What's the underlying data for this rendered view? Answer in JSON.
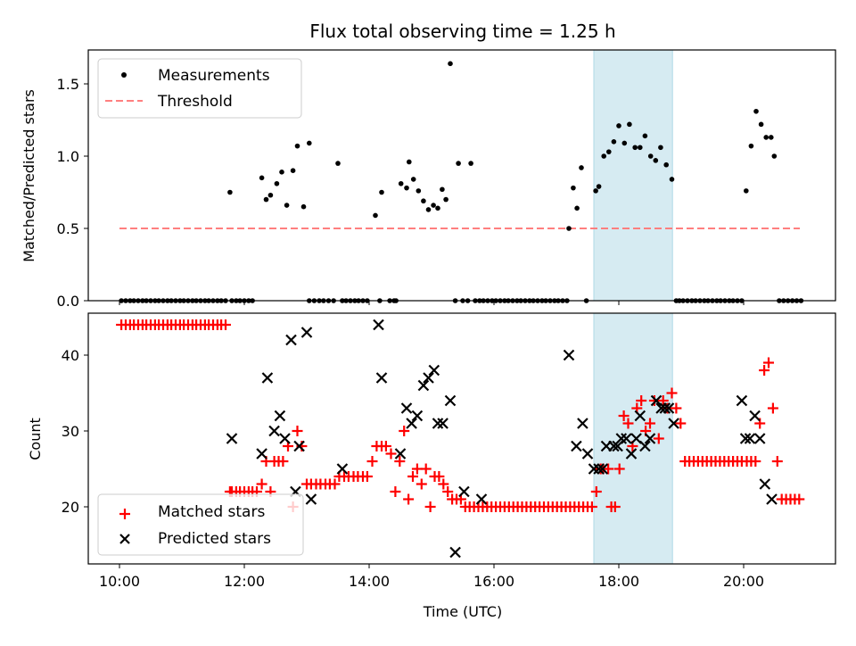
{
  "chart_data": [
    {
      "type": "scatter",
      "title": "Flux total observing time = 1.25 h",
      "xlabel": "",
      "ylabel": "Matched/Predicted stars",
      "xlim_hours": [
        9.5,
        21.5
      ],
      "ylim": [
        0,
        1.72
      ],
      "yticks": [
        0.0,
        0.5,
        1.0,
        1.5
      ],
      "ytick_labels": [
        "0.0",
        "0.5",
        "1.0",
        "1.5"
      ],
      "highlight_span_hours": [
        17.6,
        18.86
      ],
      "highlight_color": "#add8e6",
      "legend": {
        "location": "upper-left",
        "entries": [
          "Measurements",
          "Threshold"
        ]
      },
      "threshold": {
        "name": "Threshold",
        "value": 0.5,
        "x_range_hours": [
          10.0,
          20.9
        ],
        "color": "#ff7f7f",
        "style": "dashed"
      },
      "series": [
        {
          "name": "Measurements",
          "marker": "dot",
          "color": "#000000",
          "x_hours": [
            10.03,
            10.1,
            10.17,
            10.23,
            10.3,
            10.37,
            10.43,
            10.5,
            10.57,
            10.63,
            10.7,
            10.77,
            10.83,
            10.9,
            10.97,
            11.03,
            11.1,
            11.17,
            11.23,
            11.3,
            11.37,
            11.43,
            11.5,
            11.57,
            11.63,
            11.7,
            11.77,
            11.8,
            11.87,
            11.93,
            12.0,
            12.07,
            12.13,
            12.28,
            12.35,
            12.42,
            12.52,
            12.6,
            12.68,
            12.78,
            12.85,
            12.95,
            13.04,
            13.04,
            13.12,
            13.2,
            13.27,
            13.35,
            13.43,
            13.5,
            13.57,
            13.63,
            13.7,
            13.77,
            13.83,
            13.9,
            13.97,
            14.1,
            14.17,
            14.2,
            14.33,
            14.4,
            14.43,
            14.51,
            14.6,
            14.64,
            14.71,
            14.79,
            14.87,
            14.95,
            15.03,
            15.1,
            15.17,
            15.23,
            15.3,
            15.38,
            15.43,
            15.5,
            15.58,
            15.63,
            15.7,
            15.77,
            15.83,
            15.9,
            15.97,
            16.03,
            16.1,
            16.17,
            16.23,
            16.3,
            16.37,
            16.43,
            16.5,
            16.57,
            16.63,
            16.7,
            16.77,
            16.83,
            16.9,
            16.97,
            17.03,
            17.1,
            17.17,
            17.2,
            17.27,
            17.33,
            17.4,
            17.48,
            17.63,
            17.68,
            17.76,
            17.84,
            17.92,
            18.0,
            18.09,
            18.17,
            18.26,
            18.34,
            18.42,
            18.51,
            18.59,
            18.67,
            18.76,
            18.85,
            18.92,
            18.97,
            19.03,
            19.1,
            19.17,
            19.23,
            19.3,
            19.37,
            19.43,
            19.5,
            19.57,
            19.63,
            19.7,
            19.77,
            19.83,
            19.9,
            19.97,
            20.04,
            20.12,
            20.2,
            20.28,
            20.36,
            20.44,
            20.49,
            20.57,
            20.64,
            20.71,
            20.78,
            20.85,
            20.92
          ],
          "y": [
            0,
            0,
            0,
            0,
            0,
            0,
            0,
            0,
            0,
            0,
            0,
            0,
            0,
            0,
            0,
            0,
            0,
            0,
            0,
            0,
            0,
            0,
            0,
            0,
            0,
            0,
            0.75,
            0,
            0,
            0,
            0,
            0,
            0,
            0.85,
            0.7,
            0.73,
            0.81,
            0.89,
            0.66,
            0.9,
            1.07,
            0.65,
            1.09,
            0,
            0,
            0,
            0,
            0,
            0,
            0.95,
            0,
            0,
            0,
            0,
            0,
            0,
            0,
            0.59,
            0,
            0.75,
            0,
            0,
            0,
            0.81,
            0.78,
            0.96,
            0.84,
            0.76,
            0.69,
            0.63,
            0.66,
            0.64,
            0.77,
            0.7,
            1.64,
            0,
            0.95,
            0,
            0,
            0.95,
            0,
            0,
            0,
            0,
            0,
            0,
            0,
            0,
            0,
            0,
            0,
            0,
            0,
            0,
            0,
            0,
            0,
            0,
            0,
            0,
            0,
            0,
            0,
            0.5,
            0.78,
            0.64,
            0.92,
            0,
            0.76,
            0.79,
            1.0,
            1.03,
            1.1,
            1.21,
            1.09,
            1.22,
            1.06,
            1.06,
            1.14,
            1.0,
            0.97,
            1.06,
            0.94,
            0.84,
            0,
            0,
            0,
            0,
            0,
            0,
            0,
            0,
            0,
            0,
            0,
            0,
            0,
            0,
            0,
            0,
            0,
            0.76,
            1.07,
            1.31,
            1.22,
            1.13,
            1.13,
            1.0,
            0,
            0,
            0,
            0,
            0,
            0
          ]
        }
      ]
    },
    {
      "type": "scatter",
      "title": "",
      "xlabel": "Time (UTC)",
      "ylabel": "Count",
      "xlim_hours": [
        9.5,
        21.5
      ],
      "ylim": [
        12.5,
        46
      ],
      "yticks": [
        20,
        30,
        40
      ],
      "ytick_labels": [
        "20",
        "30",
        "40"
      ],
      "xticks_hours": [
        10,
        12,
        14,
        16,
        18,
        20
      ],
      "xtick_labels": [
        "10:00",
        "12:00",
        "14:00",
        "16:00",
        "18:00",
        "20:00"
      ],
      "highlight_span_hours": [
        17.6,
        18.86
      ],
      "highlight_color": "#add8e6",
      "legend": {
        "location": "lower-left",
        "entries": [
          "Matched stars",
          "Predicted stars"
        ]
      },
      "series": [
        {
          "name": "Matched stars",
          "marker": "plus",
          "color": "#ff0000",
          "x_hours": [
            10.03,
            10.1,
            10.17,
            10.23,
            10.3,
            10.37,
            10.43,
            10.5,
            10.57,
            10.63,
            10.7,
            10.77,
            10.83,
            10.9,
            10.97,
            11.03,
            11.1,
            11.17,
            11.23,
            11.3,
            11.37,
            11.43,
            11.5,
            11.57,
            11.63,
            11.7,
            11.77,
            11.8,
            11.87,
            11.93,
            12.0,
            12.07,
            12.13,
            12.2,
            12.28,
            12.35,
            12.42,
            12.48,
            12.55,
            12.62,
            12.7,
            12.78,
            12.85,
            12.92,
            13.0,
            13.07,
            13.15,
            13.22,
            13.3,
            13.37,
            13.45,
            13.52,
            13.6,
            13.67,
            13.75,
            13.82,
            13.9,
            13.97,
            14.05,
            14.12,
            14.2,
            14.27,
            14.35,
            14.42,
            14.49,
            14.56,
            14.63,
            14.7,
            14.77,
            14.84,
            14.91,
            14.98,
            15.05,
            15.12,
            15.19,
            15.26,
            15.33,
            15.4,
            15.47,
            15.54,
            15.61,
            15.68,
            15.75,
            15.82,
            15.89,
            15.96,
            16.03,
            16.1,
            16.17,
            16.24,
            16.31,
            16.38,
            16.45,
            16.52,
            16.59,
            16.66,
            16.73,
            16.8,
            16.87,
            16.94,
            17.01,
            17.08,
            17.15,
            17.22,
            17.29,
            17.36,
            17.43,
            17.5,
            17.57,
            17.64,
            17.71,
            17.75,
            17.83,
            17.88,
            17.94,
            18.01,
            18.08,
            18.15,
            18.22,
            18.29,
            18.36,
            18.43,
            18.5,
            18.57,
            18.64,
            18.71,
            18.78,
            18.85,
            18.92,
            18.99,
            19.06,
            19.13,
            19.2,
            19.27,
            19.34,
            19.41,
            19.48,
            19.55,
            19.62,
            19.69,
            19.76,
            19.83,
            19.9,
            19.97,
            20.05,
            20.12,
            20.19,
            20.26,
            20.33,
            20.4,
            20.47,
            20.54,
            20.61,
            20.68,
            20.75,
            20.82,
            20.89
          ],
          "y": [
            44,
            44,
            44,
            44,
            44,
            44,
            44,
            44,
            44,
            44,
            44,
            44,
            44,
            44,
            44,
            44,
            44,
            44,
            44,
            44,
            44,
            44,
            44,
            44,
            44,
            44,
            22,
            22,
            22,
            22,
            22,
            22,
            22,
            22,
            23,
            26,
            22,
            26,
            26,
            26,
            28,
            20,
            30,
            28,
            23,
            23,
            23,
            23,
            23,
            23,
            23,
            24,
            24,
            24,
            24,
            24,
            24,
            24,
            26,
            28,
            28,
            28,
            27,
            22,
            26,
            30,
            21,
            24,
            25,
            23,
            25,
            20,
            24,
            24,
            23,
            22,
            21,
            21,
            21,
            20,
            20,
            20,
            20,
            20,
            20,
            20,
            20,
            20,
            20,
            20,
            20,
            20,
            20,
            20,
            20,
            20,
            20,
            20,
            20,
            20,
            20,
            20,
            20,
            20,
            20,
            20,
            20,
            20,
            20,
            22,
            25,
            25,
            25,
            20,
            20,
            25,
            32,
            31,
            28,
            33,
            34,
            30,
            31,
            34,
            29,
            34,
            33,
            35,
            33,
            31,
            26,
            26,
            26,
            26,
            26,
            26,
            26,
            26,
            26,
            26,
            26,
            26,
            26,
            26,
            26,
            26,
            26,
            31,
            38,
            39,
            33,
            26,
            21,
            21,
            21,
            21,
            21,
            21,
            21,
            21,
            21
          ],
          "note": "x/y arrays approximate; dense runs at constant values"
        },
        {
          "name": "Predicted stars",
          "marker": "x",
          "color": "#000000",
          "x_hours": [
            11.8,
            12.28,
            12.37,
            12.48,
            12.57,
            12.65,
            12.75,
            12.82,
            12.88,
            13.0,
            13.07,
            13.57,
            14.15,
            14.2,
            14.5,
            14.6,
            14.68,
            14.77,
            14.87,
            14.95,
            15.04,
            15.1,
            15.18,
            15.3,
            15.38,
            15.52,
            15.8,
            17.2,
            17.32,
            17.42,
            17.5,
            17.6,
            17.68,
            17.74,
            17.8,
            17.92,
            17.98,
            18.04,
            18.12,
            18.2,
            18.28,
            18.34,
            18.42,
            18.5,
            18.6,
            18.68,
            18.74,
            18.8,
            18.88,
            19.97,
            20.03,
            20.1,
            20.18,
            20.26,
            20.34,
            20.45
          ],
          "y": [
            29,
            27,
            37,
            30,
            32,
            29,
            42,
            22,
            28,
            43,
            21,
            25,
            44,
            37,
            27,
            33,
            31,
            32,
            36,
            37,
            38,
            31,
            31,
            34,
            14,
            22,
            21,
            40,
            28,
            31,
            27,
            25,
            25,
            25,
            28,
            28,
            28,
            29,
            29,
            27,
            29,
            32,
            28,
            29,
            34,
            33,
            33,
            33,
            31,
            34,
            29,
            29,
            32,
            29,
            23,
            21
          ]
        }
      ]
    }
  ],
  "figure": {
    "title": "Flux total observing time = 1.25 h"
  }
}
